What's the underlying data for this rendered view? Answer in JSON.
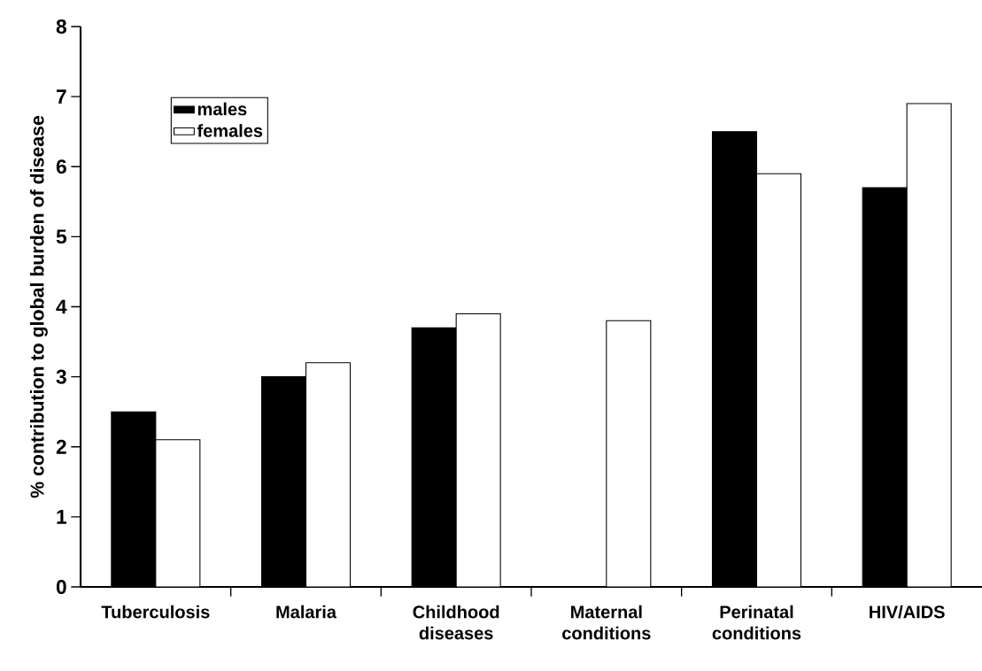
{
  "chart_data": {
    "type": "bar",
    "ylabel": "% contribution to global burden of disease",
    "categories": [
      "Tuberculosis",
      "Malaria",
      "Childhood diseases",
      "Maternal conditions",
      "Perinatal conditions",
      "HIV/AIDS"
    ],
    "series": [
      {
        "name": "males",
        "color": "#000000",
        "values": [
          2.5,
          3.0,
          3.7,
          null,
          6.5,
          5.7
        ]
      },
      {
        "name": "females",
        "color": "#ffffff",
        "values": [
          2.1,
          3.2,
          3.9,
          3.8,
          5.9,
          6.9
        ]
      }
    ],
    "ylim": [
      0,
      8
    ],
    "yticks": [
      0,
      1,
      2,
      3,
      4,
      5,
      6,
      7,
      8
    ],
    "legend": "top left"
  }
}
